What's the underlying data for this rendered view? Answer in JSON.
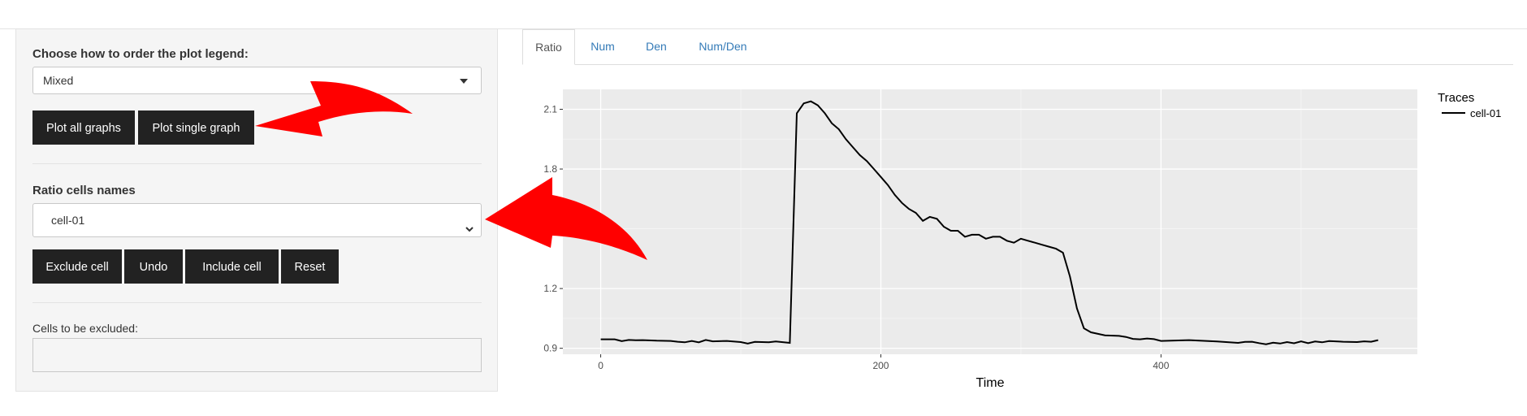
{
  "sidebar": {
    "legend_order_label": "Choose how to order the plot legend:",
    "legend_order_value": "Mixed",
    "plot_all_label": "Plot all graphs",
    "plot_single_label": "Plot single graph",
    "ratio_cells_label": "Ratio cells names",
    "ratio_cells_value": "cell-01",
    "exclude_label": "Exclude cell",
    "undo_label": "Undo",
    "include_label": "Include cell",
    "reset_label": "Reset",
    "excluded_label": "Cells to be excluded:",
    "excluded_value": ""
  },
  "tabs": [
    {
      "label": "Ratio",
      "active": true
    },
    {
      "label": "Num",
      "active": false
    },
    {
      "label": "Den",
      "active": false
    },
    {
      "label": "Num/Den",
      "active": false
    }
  ],
  "colors": {
    "arrow": "#ff0000",
    "button": "#222222",
    "panel_bg": "#ebebeb"
  },
  "chart_data": {
    "type": "line",
    "title": "",
    "xlabel": "Time",
    "ylabel": "",
    "xlim": [
      -27,
      583
    ],
    "ylim": [
      0.87,
      2.2
    ],
    "xticks": [
      0,
      200,
      400
    ],
    "yticks": [
      0.9,
      1.2,
      1.8,
      2.1
    ],
    "ytick_labels": [
      "0.9",
      "1.2",
      "1.8",
      "2.1"
    ],
    "grid": true,
    "legend": {
      "title": "Traces",
      "position": "right"
    },
    "series": [
      {
        "name": "cell-01",
        "color": "#000000",
        "x": [
          0,
          10,
          15,
          20,
          25,
          30,
          40,
          50,
          55,
          60,
          65,
          70,
          75,
          80,
          90,
          100,
          105,
          110,
          120,
          125,
          135,
          140,
          145,
          150,
          155,
          160,
          165,
          170,
          175,
          180,
          185,
          190,
          195,
          200,
          205,
          210,
          215,
          220,
          225,
          230,
          235,
          240,
          245,
          250,
          255,
          260,
          265,
          270,
          275,
          280,
          285,
          290,
          295,
          300,
          305,
          310,
          315,
          320,
          325,
          330,
          335,
          340,
          345,
          350,
          360,
          370,
          375,
          380,
          385,
          390,
          395,
          400,
          420,
          440,
          455,
          460,
          465,
          470,
          475,
          480,
          485,
          490,
          495,
          500,
          505,
          510,
          515,
          520,
          530,
          540,
          545,
          550,
          555
        ],
        "y": [
          0.945,
          0.945,
          0.936,
          0.942,
          0.94,
          0.941,
          0.938,
          0.937,
          0.933,
          0.93,
          0.937,
          0.93,
          0.942,
          0.935,
          0.937,
          0.931,
          0.924,
          0.932,
          0.93,
          0.934,
          0.927,
          2.08,
          2.13,
          2.14,
          2.12,
          2.08,
          2.03,
          2.0,
          1.95,
          1.91,
          1.87,
          1.84,
          1.8,
          1.76,
          1.72,
          1.67,
          1.63,
          1.6,
          1.58,
          1.54,
          1.56,
          1.55,
          1.51,
          1.49,
          1.49,
          1.46,
          1.47,
          1.47,
          1.45,
          1.46,
          1.46,
          1.44,
          1.43,
          1.45,
          1.44,
          1.43,
          1.42,
          1.41,
          1.4,
          1.38,
          1.26,
          1.1,
          1.0,
          0.98,
          0.965,
          0.962,
          0.957,
          0.947,
          0.945,
          0.949,
          0.946,
          0.937,
          0.941,
          0.934,
          0.927,
          0.932,
          0.933,
          0.926,
          0.92,
          0.928,
          0.924,
          0.931,
          0.925,
          0.935,
          0.926,
          0.934,
          0.93,
          0.936,
          0.933,
          0.931,
          0.935,
          0.933,
          0.941
        ]
      }
    ]
  }
}
